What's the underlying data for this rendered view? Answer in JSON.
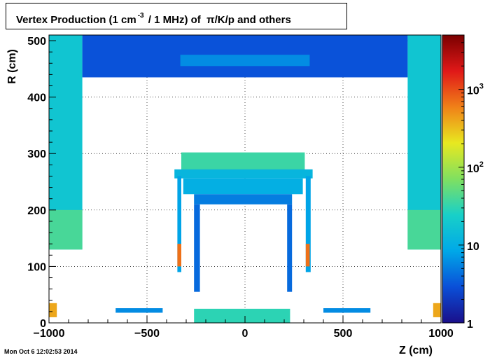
{
  "chart_data": {
    "type": "heatmap",
    "title_parts": {
      "prefix": "Vertex Production (1 cm",
      "exponent": "-3",
      "middle": "/ 1 MHz) of",
      "particles": "π/K/p and others"
    },
    "xlabel": "Z (cm)",
    "ylabel": "R (cm)",
    "xlim": [
      -1000,
      1000
    ],
    "ylim": [
      0,
      510
    ],
    "x_ticks": [
      -1000,
      -500,
      0,
      500,
      1000
    ],
    "x_tick_labels": [
      "−1000",
      "−500",
      "0",
      "500",
      "1000"
    ],
    "y_ticks": [
      0,
      100,
      200,
      300,
      400,
      500
    ],
    "y_tick_labels": [
      "0",
      "100",
      "200",
      "300",
      "400",
      "500"
    ],
    "grid": true,
    "colorbar": {
      "scale": "log",
      "range": [
        1,
        5000
      ],
      "ticks": [
        1,
        10,
        100,
        1000
      ],
      "tick_labels": [
        {
          "base": "1",
          "exp": ""
        },
        {
          "base": "10",
          "exp": ""
        },
        {
          "base": "10",
          "exp": "2"
        },
        {
          "base": "10",
          "exp": "3"
        }
      ],
      "colors": [
        "#1a0f8a",
        "#0a4fd8",
        "#00a8e8",
        "#18d0c8",
        "#80e060",
        "#e8e820",
        "#f08018",
        "#e01818",
        "#7a0000"
      ]
    },
    "regions": [
      {
        "z": [
          -1000,
          -830
        ],
        "r": [
          130,
          510
        ],
        "level": 18
      },
      {
        "z": [
          -1000,
          -830
        ],
        "r": [
          130,
          200
        ],
        "level": 40
      },
      {
        "z": [
          -830,
          830
        ],
        "r": [
          435,
          510
        ],
        "level": 3
      },
      {
        "z": [
          -330,
          330
        ],
        "r": [
          455,
          475
        ],
        "level": 6
      },
      {
        "z": [
          830,
          1000
        ],
        "r": [
          130,
          510
        ],
        "level": 18
      },
      {
        "z": [
          830,
          1000
        ],
        "r": [
          130,
          200
        ],
        "level": 40
      },
      {
        "z": [
          -325,
          305
        ],
        "r": [
          270,
          302
        ],
        "level": 35
      },
      {
        "z": [
          -360,
          345
        ],
        "r": [
          256,
          272
        ],
        "level": 12
      },
      {
        "z": [
          -315,
          295
        ],
        "r": [
          228,
          256
        ],
        "level": 10
      },
      {
        "z": [
          -260,
          240
        ],
        "r": [
          210,
          228
        ],
        "level": 5
      },
      {
        "z": [
          -345,
          -325
        ],
        "r": [
          90,
          260
        ],
        "level": 8
      },
      {
        "z": [
          310,
          335
        ],
        "r": [
          90,
          260
        ],
        "level": 8
      },
      {
        "z": [
          -260,
          -230
        ],
        "r": [
          55,
          210
        ],
        "level": 4
      },
      {
        "z": [
          215,
          240
        ],
        "r": [
          55,
          210
        ],
        "level": 4
      },
      {
        "z": [
          -660,
          -420
        ],
        "r": [
          18,
          26
        ],
        "level": 6
      },
      {
        "z": [
          400,
          640
        ],
        "r": [
          18,
          26
        ],
        "level": 6
      },
      {
        "z": [
          -260,
          230
        ],
        "r": [
          0,
          25
        ],
        "level": 30
      },
      {
        "z": [
          -1000,
          -960
        ],
        "r": [
          10,
          35
        ],
        "level": 400
      },
      {
        "z": [
          960,
          1000
        ],
        "r": [
          10,
          35
        ],
        "level": 400
      },
      {
        "z": [
          -345,
          -325
        ],
        "r": [
          100,
          140
        ],
        "level": 700
      },
      {
        "z": [
          310,
          330
        ],
        "r": [
          100,
          140
        ],
        "level": 700
      }
    ]
  },
  "footer": {
    "timestamp": "Mon Oct  6 12:02:53 2014"
  }
}
